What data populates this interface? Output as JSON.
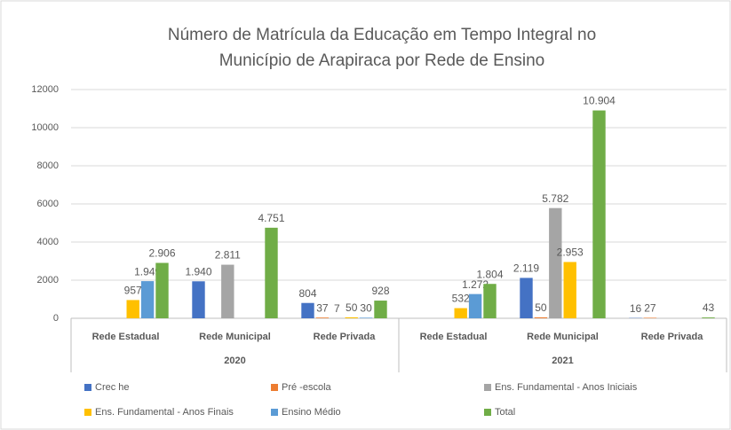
{
  "chart_data": {
    "type": "bar",
    "title": "Número de Matrícula da Educação em Tempo Integral no Município de Arapiraca por Rede de Ensino",
    "groups": [
      {
        "name": "2020",
        "categories": [
          "Rede Estadual",
          "Rede Municipal",
          "Rede Privada"
        ]
      },
      {
        "name": "2021",
        "categories": [
          "Rede Estadual",
          "Rede Municipal",
          "Rede Privada"
        ]
      }
    ],
    "series": [
      {
        "name": "Crec he",
        "color": "#4472c4",
        "values": [
          null,
          1940,
          804,
          null,
          2119,
          16
        ],
        "value_labels": [
          null,
          "1.940",
          "804",
          null,
          "2.119",
          "16"
        ]
      },
      {
        "name": "Pré -escola",
        "color": "#ed7d31",
        "values": [
          null,
          null,
          37,
          null,
          50,
          27
        ],
        "value_labels": [
          null,
          null,
          "37",
          null,
          "50",
          "27"
        ]
      },
      {
        "name": "Ens. Fundamental - Anos Iniciais",
        "color": "#a5a5a5",
        "values": [
          null,
          2811,
          7,
          null,
          5782,
          null
        ],
        "value_labels": [
          null,
          "2.811",
          "7",
          null,
          "5.782",
          null
        ]
      },
      {
        "name": "Ens. Fundamental - Anos Finais",
        "color": "#ffc000",
        "values": [
          957,
          null,
          50,
          532,
          2953,
          null
        ],
        "value_labels": [
          "957",
          null,
          "50",
          "532",
          "2.953",
          null
        ]
      },
      {
        "name": "Ensino Médio",
        "color": "#5b9bd5",
        "values": [
          1949,
          null,
          30,
          1272,
          null,
          null
        ],
        "value_labels": [
          "1.949",
          null,
          "30",
          "1.272",
          null,
          null
        ]
      },
      {
        "name": "Total",
        "color": "#70ad47",
        "values": [
          2906,
          4751,
          928,
          1804,
          10904,
          43
        ],
        "value_labels": [
          "2.906",
          "4.751",
          "928",
          "1.804",
          "10.904",
          "43"
        ]
      }
    ],
    "ylim": [
      0,
      12000
    ],
    "yticks": [
      0,
      2000,
      4000,
      6000,
      8000,
      10000,
      12000
    ],
    "grid": true,
    "legend": "bottom"
  }
}
